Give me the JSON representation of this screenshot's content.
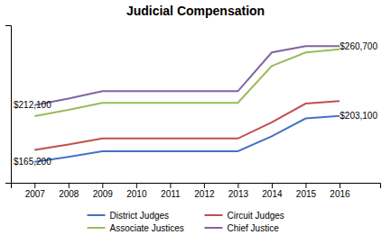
{
  "chart_data": {
    "type": "line",
    "title": "Judicial Compensation",
    "x": [
      2007,
      2008,
      2009,
      2010,
      2011,
      2012,
      2013,
      2014,
      2015,
      2016
    ],
    "series": [
      {
        "name": "District Judges",
        "color": "#4472C4",
        "values": [
          165200,
          169300,
          174000,
          174000,
          174000,
          174000,
          174000,
          186300,
          201100,
          203100
        ]
      },
      {
        "name": "Circuit Judges",
        "color": "#C0504D",
        "values": [
          175100,
          179500,
          184500,
          184500,
          184500,
          184500,
          184500,
          197800,
          213300,
          215400
        ]
      },
      {
        "name": "Associate Justices",
        "color": "#9BBB59",
        "values": [
          203000,
          208100,
          213900,
          213900,
          213900,
          213900,
          213900,
          244400,
          255500,
          258100
        ]
      },
      {
        "name": "Chief Justice",
        "color": "#8064A2",
        "values": [
          212100,
          217400,
          223500,
          223500,
          223500,
          223500,
          223500,
          255500,
          260700,
          260700
        ]
      }
    ],
    "xlim": [
      2006.3,
      2017.2
    ],
    "xticks": [
      2007,
      2008,
      2009,
      2010,
      2011,
      2012,
      2013,
      2014,
      2015,
      2016
    ],
    "ylim": [
      148000,
      278000
    ],
    "tick_labels": "x",
    "grid": false,
    "legend": "bottom",
    "annotations": [
      {
        "text": "$212,100",
        "x": 2006.3,
        "y": 212100
      },
      {
        "text": "$165,200",
        "x": 2006.3,
        "y": 165200
      },
      {
        "text": "$260,700",
        "x": 2017.2,
        "y": 260700
      },
      {
        "text": "$203,100",
        "x": 2017.2,
        "y": 203100
      }
    ]
  }
}
